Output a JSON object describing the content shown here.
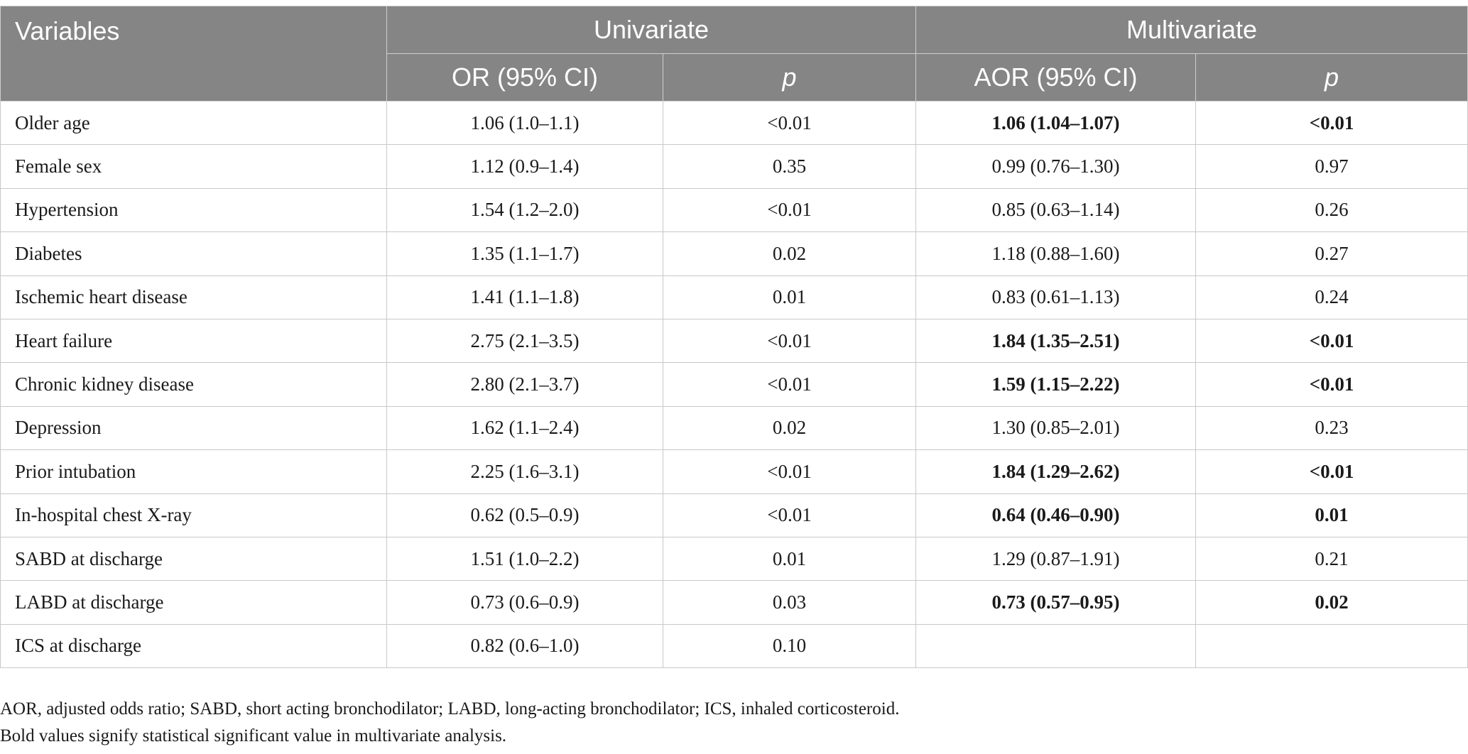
{
  "header": {
    "variables": "Variables",
    "univariate": "Univariate",
    "multivariate": "Multivariate",
    "or_ci": "OR (95% CI)",
    "p1": "p",
    "aor_ci": "AOR (95% CI)",
    "p2": "p"
  },
  "rows": [
    {
      "variable": "Older age",
      "or": "1.06 (1.0–1.1)",
      "p_uni": "<0.01",
      "aor": "1.06 (1.04–1.07)",
      "p_multi": "<0.01",
      "bold": true
    },
    {
      "variable": "Female sex",
      "or": "1.12 (0.9–1.4)",
      "p_uni": "0.35",
      "aor": "0.99 (0.76–1.30)",
      "p_multi": "0.97",
      "bold": false
    },
    {
      "variable": "Hypertension",
      "or": "1.54 (1.2–2.0)",
      "p_uni": "<0.01",
      "aor": "0.85 (0.63–1.14)",
      "p_multi": "0.26",
      "bold": false
    },
    {
      "variable": "Diabetes",
      "or": "1.35 (1.1–1.7)",
      "p_uni": "0.02",
      "aor": "1.18 (0.88–1.60)",
      "p_multi": "0.27",
      "bold": false
    },
    {
      "variable": "Ischemic heart disease",
      "or": "1.41 (1.1–1.8)",
      "p_uni": "0.01",
      "aor": "0.83 (0.61–1.13)",
      "p_multi": "0.24",
      "bold": false
    },
    {
      "variable": "Heart failure",
      "or": "2.75 (2.1–3.5)",
      "p_uni": "<0.01",
      "aor": "1.84 (1.35–2.51)",
      "p_multi": "<0.01",
      "bold": true
    },
    {
      "variable": "Chronic kidney disease",
      "or": "2.80 (2.1–3.7)",
      "p_uni": "<0.01",
      "aor": "1.59 (1.15–2.22)",
      "p_multi": "<0.01",
      "bold": true
    },
    {
      "variable": "Depression",
      "or": "1.62 (1.1–2.4)",
      "p_uni": "0.02",
      "aor": "1.30 (0.85–2.01)",
      "p_multi": "0.23",
      "bold": false
    },
    {
      "variable": "Prior intubation",
      "or": "2.25 (1.6–3.1)",
      "p_uni": "<0.01",
      "aor": "1.84 (1.29–2.62)",
      "p_multi": "<0.01",
      "bold": true
    },
    {
      "variable": "In-hospital chest X-ray",
      "or": "0.62 (0.5–0.9)",
      "p_uni": "<0.01",
      "aor": "0.64 (0.46–0.90)",
      "p_multi": "0.01",
      "bold": true
    },
    {
      "variable": "SABD at discharge",
      "or": "1.51 (1.0–2.2)",
      "p_uni": "0.01",
      "aor": "1.29 (0.87–1.91)",
      "p_multi": "0.21",
      "bold": false
    },
    {
      "variable": "LABD at discharge",
      "or": "0.73 (0.6–0.9)",
      "p_uni": "0.03",
      "aor": "0.73 (0.57–0.95)",
      "p_multi": "0.02",
      "bold": true
    },
    {
      "variable": "ICS at discharge",
      "or": "0.82 (0.6–1.0)",
      "p_uni": "0.10",
      "aor": "",
      "p_multi": "",
      "bold": false
    }
  ],
  "footnotes": {
    "abbreviations": "AOR, adjusted odds ratio; SABD, short acting bronchodilator; LABD, long-acting bronchodilator; ICS, inhaled corticosteroid.",
    "bold_note": "Bold values signify statistical significant value in multivariate analysis."
  },
  "colors": {
    "header_bg": "#858585",
    "header_text": "#ffffff",
    "grid": "#c8c8c8"
  }
}
